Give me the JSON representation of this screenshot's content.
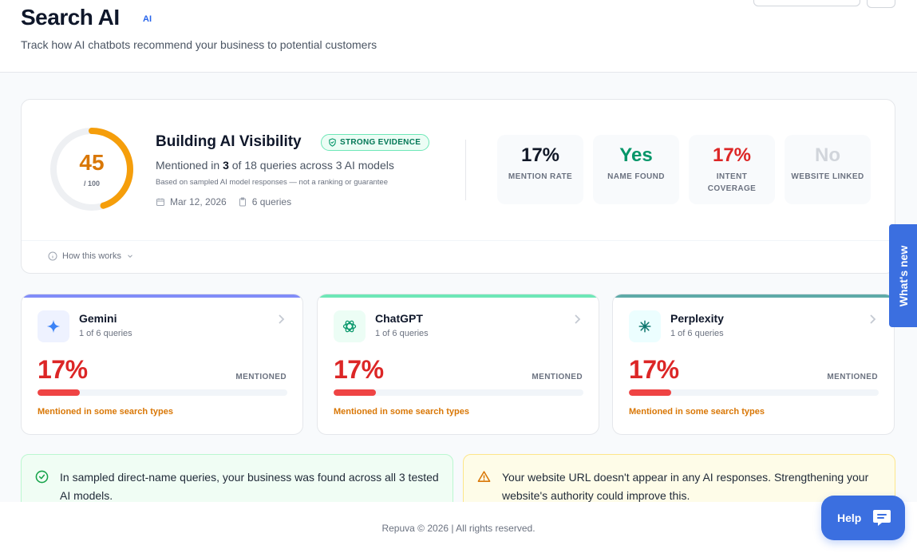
{
  "header": {
    "title": "Search AI",
    "ai_tag": "AI",
    "subtitle": "Track how AI chatbots recommend your business to potential customers"
  },
  "summary": {
    "score": "45",
    "score_max": "/ 100",
    "score_fraction": 0.45,
    "title": "Building AI Visibility",
    "evidence_badge": "STRONG EVIDENCE",
    "mention_prefix": "Mentioned in ",
    "mention_count": "3",
    "mention_suffix": " of 18 queries across 3 AI models",
    "basis_note": "Based on sampled AI model responses — not a ranking or guarantee",
    "date": "Mar 12, 2026",
    "queries": "6 queries",
    "how_it_works": "How this works",
    "metrics": [
      {
        "value": "17%",
        "label": "MENTION RATE",
        "color": "#111827"
      },
      {
        "value": "Yes",
        "label": "NAME FOUND",
        "color": "#059669"
      },
      {
        "value": "17%",
        "label": "INTENT COVERAGE",
        "color": "#dc2626"
      },
      {
        "value": "No",
        "label": "WEBSITE LINKED",
        "color": "#d1d5db"
      }
    ]
  },
  "models": [
    {
      "name": "Gemini",
      "queries": "1 of 6 queries",
      "percent": "17%",
      "mention_fraction": 0.17,
      "status": "MENTIONED",
      "note": "Mentioned in some search types",
      "accent": "#818cf8",
      "icon": "sparkle-icon"
    },
    {
      "name": "ChatGPT",
      "queries": "1 of 6 queries",
      "percent": "17%",
      "mention_fraction": 0.17,
      "status": "MENTIONED",
      "note": "Mentioned in some search types",
      "accent": "#6ee7b7",
      "icon": "openai-icon"
    },
    {
      "name": "Perplexity",
      "queries": "1 of 6 queries",
      "percent": "17%",
      "mention_fraction": 0.17,
      "status": "MENTIONED",
      "note": "Mentioned in some search types",
      "accent": "#5eaaa8",
      "icon": "asterisk-icon"
    }
  ],
  "banners": {
    "success": "In sampled direct-name queries, your business was found across all 3 tested AI models.",
    "warning": "Your website URL doesn't appear in any AI responses. Strengthening your website's authority could improve this."
  },
  "footer": {
    "text": "Repuva © 2026 | All rights reserved."
  },
  "whats_new": "What's new",
  "help": "Help"
}
